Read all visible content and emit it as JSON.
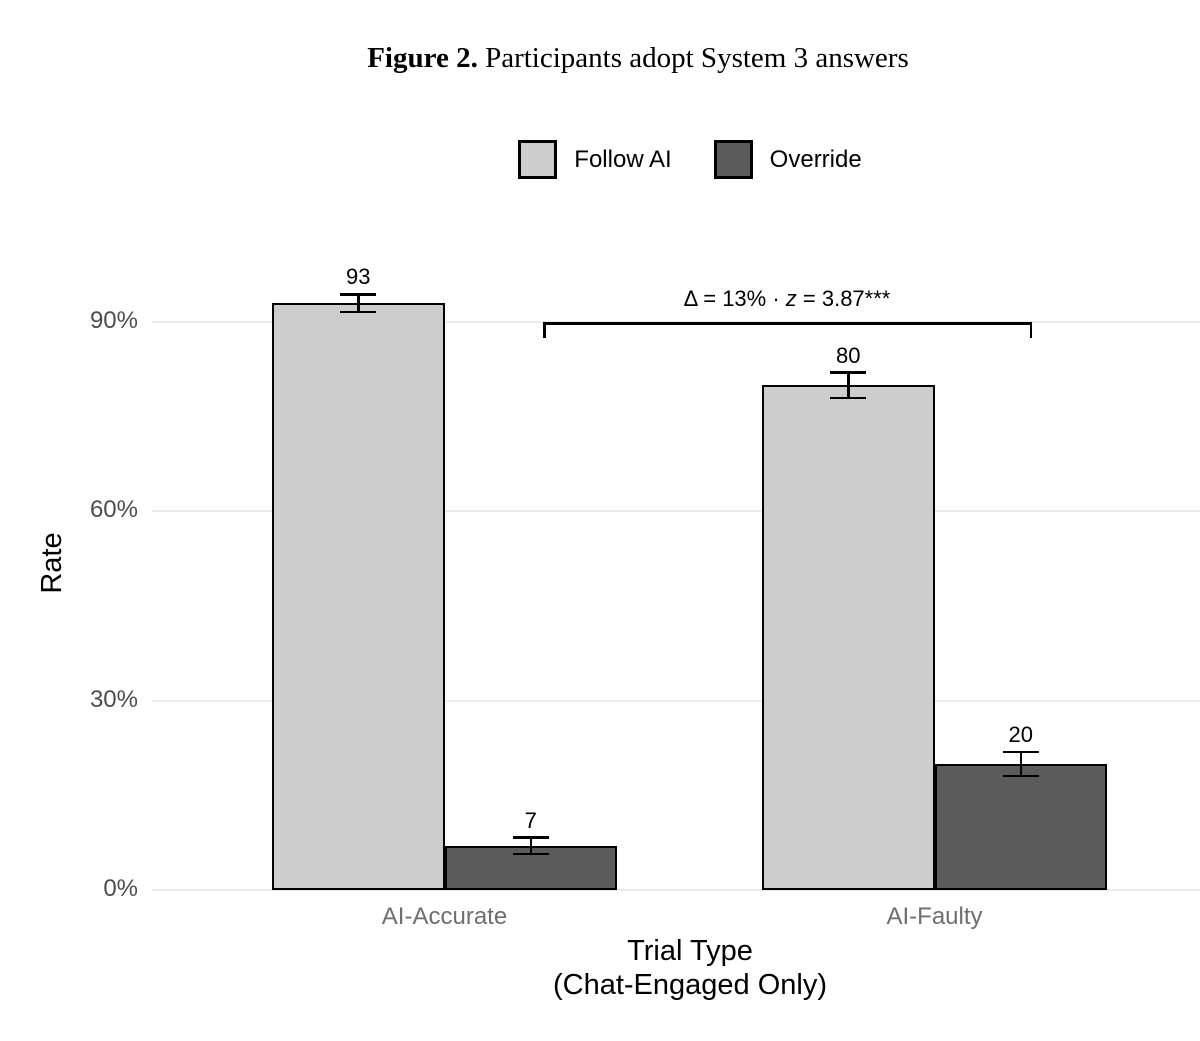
{
  "title": {
    "label": "Figure 2.",
    "text": " Participants adopt System 3 answers"
  },
  "chart_data": {
    "type": "bar",
    "title": "Figure 2. Participants adopt System 3 answers",
    "categories": [
      "AI-Accurate",
      "AI-Faulty"
    ],
    "series": [
      {
        "name": "Follow AI",
        "color": "#cdcdcd",
        "values": [
          93,
          80
        ],
        "errors": [
          1.4,
          2.0
        ]
      },
      {
        "name": "Override",
        "color": "#5b5b5b",
        "values": [
          7,
          20
        ],
        "errors": [
          1.3,
          1.9
        ]
      }
    ],
    "bar_labels": [
      "93",
      "7",
      "80",
      "20"
    ],
    "ylabel": "Rate",
    "xlabel": "Trial Type (Chat-Engaged Only)",
    "xlabel_lines": [
      "Trial Type",
      "(Chat-Engaged Only)"
    ],
    "yticks": [
      {
        "value": 0,
        "label": "0%"
      },
      {
        "value": 30,
        "label": "30%"
      },
      {
        "value": 60,
        "label": "60%"
      },
      {
        "value": 90,
        "label": "90%"
      }
    ],
    "ylim": [
      0,
      100
    ],
    "grid": true,
    "legend_position": "top",
    "annotation": {
      "text": "Δ = 13% · z = 3.87***",
      "prefix": "Δ = 13% · ",
      "variable": "z",
      "suffix": " = 3.87***"
    },
    "colors": {
      "gridline": "#ebebeb",
      "axis_tick_text": "#4d4d4d",
      "category_text": "#6e6e6e",
      "text": "#000000"
    }
  }
}
